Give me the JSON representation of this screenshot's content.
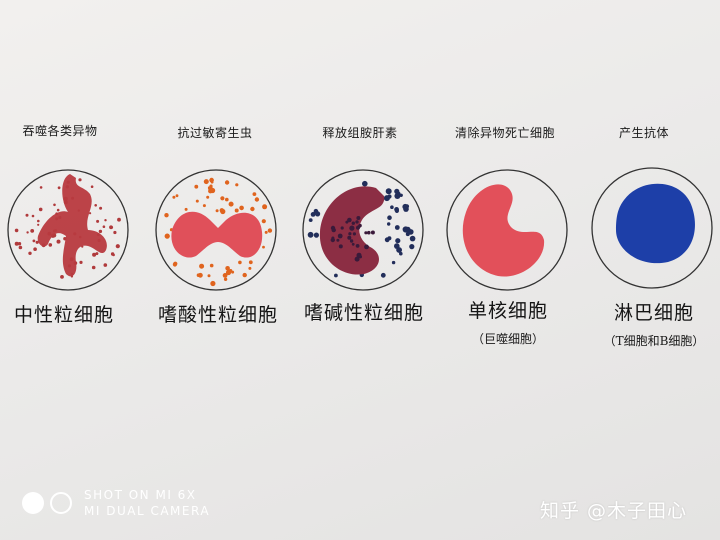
{
  "cells": [
    {
      "function": "吞噬各类异物",
      "name": "中性粒细胞",
      "sub": ""
    },
    {
      "function": "抗过敏寄生虫",
      "name": "嗜酸性粒细胞",
      "sub": ""
    },
    {
      "function": "释放组胺肝素",
      "name": "嗜碱性粒细胞",
      "sub": ""
    },
    {
      "function": "清除异物死亡细胞",
      "name": "单核细胞",
      "sub": "（巨噬细胞）"
    },
    {
      "function": "产生抗体",
      "name": "淋巴细胞",
      "sub": "（T细胞和B细胞）"
    }
  ],
  "colors": {
    "neutrophil": "#b83a3f",
    "eosinophil": "#e0505a",
    "basophil": "#8c2e44",
    "monocyte": "#e2505a",
    "lymphocyte": "#1d3fa8"
  },
  "camera": {
    "line1": "SHOT ON MI 6X",
    "line2": "MI DUAL CAMERA"
  },
  "watermark": "知乎 @木子田心"
}
